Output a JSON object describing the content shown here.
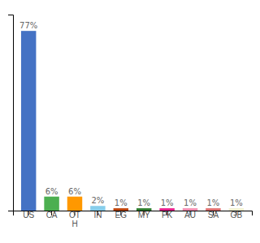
{
  "chart_data": {
    "type": "bar",
    "categories": [
      "US",
      "CA",
      "OT\nH",
      "IN",
      "EG",
      "MY",
      "PK",
      "AU",
      "SA",
      "GB"
    ],
    "values": [
      77,
      6,
      6,
      2,
      1,
      1,
      1,
      1,
      1,
      1
    ],
    "value_labels": [
      "77%",
      "6%",
      "6%",
      "2%",
      "1%",
      "1%",
      "1%",
      "1%",
      "1%",
      "1%"
    ],
    "colors": [
      "#4472c4",
      "#4caf50",
      "#ff9800",
      "#87ceeb",
      "#c0440a",
      "#2d7d2d",
      "#e91e8c",
      "#f48fb1",
      "#e07070",
      "#f0f0d0"
    ],
    "ylim": [
      0,
      84
    ],
    "data_labels": true,
    "tick_labels": "x",
    "grid": false
  }
}
